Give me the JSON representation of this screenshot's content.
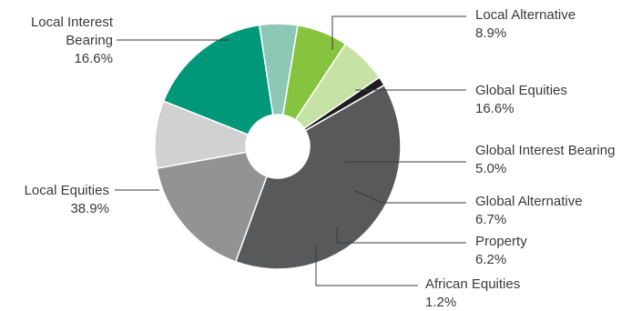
{
  "chart_data": {
    "type": "pie",
    "donut": true,
    "title": "",
    "legend": "none",
    "slices": [
      {
        "name": "Local Interest Bearing",
        "line1": "Local Interest",
        "line2": "Bearing",
        "value_label": "16.6%",
        "value": 16.6,
        "color": "#939393"
      },
      {
        "name": "Local Alternative",
        "value_label": "8.9%",
        "value": 8.9,
        "color": "#d1d1d1"
      },
      {
        "name": "Global Equities",
        "value_label": "16.6%",
        "value": 16.6,
        "color": "#009878"
      },
      {
        "name": "Global Interest Bearing",
        "value_label": "5.0%",
        "value": 5.0,
        "color": "#8dc7b6"
      },
      {
        "name": "Global Alternative",
        "value_label": "6.7%",
        "value": 6.7,
        "color": "#86c440"
      },
      {
        "name": "Property",
        "value_label": "6.2%",
        "value": 6.2,
        "color": "#c6e2a4"
      },
      {
        "name": "African Equities",
        "value_label": "1.2%",
        "value": 1.2,
        "color": "#1d1d1d"
      },
      {
        "name": "Local Equities",
        "value_label": "38.9%",
        "value": 38.9,
        "color": "#58595b"
      }
    ]
  }
}
